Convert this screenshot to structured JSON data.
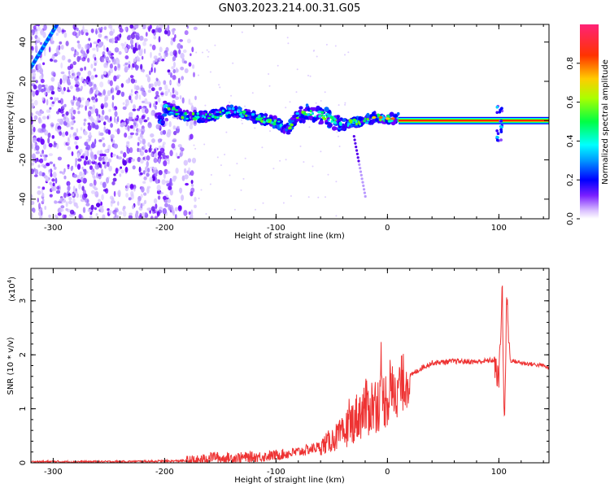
{
  "title": "GN03.2023.214.00.31.G05",
  "chart_data": [
    {
      "type": "heatmap",
      "xlabel": "Height of straight line (km)",
      "ylabel": "Frequency (Hz)",
      "xlim": [
        -320,
        145
      ],
      "ylim": [
        -50,
        49
      ],
      "xticks": [
        -300,
        -200,
        -100,
        0,
        100
      ],
      "yticks": [
        -40,
        -20,
        0,
        20,
        40
      ],
      "colorbar": {
        "label": "Normalized spectral amplitude",
        "range": [
          0,
          1
        ],
        "ticks": [
          0.0,
          0.2,
          0.4,
          0.6,
          0.8
        ],
        "colors": [
          "#ffffff",
          "#cc99ff",
          "#6600ff",
          "#0000ff",
          "#00ffff",
          "#00ff00",
          "#ffff00",
          "#ff9900",
          "#ff0000",
          "#ff33cc"
        ]
      },
      "ridge": {
        "x": [
          -200,
          -180,
          -160,
          -140,
          -120,
          -100,
          -90,
          -80,
          -70,
          -60,
          -50,
          -40,
          -30,
          -20,
          -10,
          0,
          10
        ],
        "y": [
          7,
          2,
          2,
          5,
          2,
          -1,
          -5,
          3,
          4,
          3,
          1,
          -2,
          -1,
          0,
          2,
          1,
          1
        ]
      },
      "carrier": {
        "xrange": [
          10,
          145
        ],
        "freq": 0
      }
    },
    {
      "type": "line",
      "xlabel": "Height of straight line (km)",
      "ylabel": "SNR (10 * v/v)",
      "yscale_label": "(x10",
      "yscale_exp": "4",
      "yscale_close": ")",
      "xlim": [
        -320,
        145
      ],
      "ylim": [
        0,
        3.6
      ],
      "xticks": [
        -300,
        -200,
        -100,
        0,
        100
      ],
      "yticks": [
        0,
        1,
        2,
        3
      ],
      "color": "#ee3333",
      "series": [
        {
          "x": [
            -320,
            -250,
            -200,
            -170,
            -155,
            -150,
            -130,
            -110,
            -100,
            -80,
            -60,
            -40,
            -30,
            -20,
            -10,
            0,
            10,
            20,
            30,
            40,
            60,
            80,
            95,
            100,
            103,
            105,
            107,
            110,
            120,
            140,
            145
          ],
          "y": [
            0.02,
            0.02,
            0.03,
            0.04,
            0.12,
            0.08,
            0.1,
            0.12,
            0.14,
            0.2,
            0.3,
            0.55,
            0.8,
            1.0,
            1.1,
            1.2,
            1.4,
            1.6,
            1.75,
            1.85,
            1.88,
            1.87,
            1.9,
            1.5,
            3.3,
            0.5,
            3.1,
            1.9,
            1.85,
            1.8,
            1.75
          ]
        }
      ]
    }
  ]
}
